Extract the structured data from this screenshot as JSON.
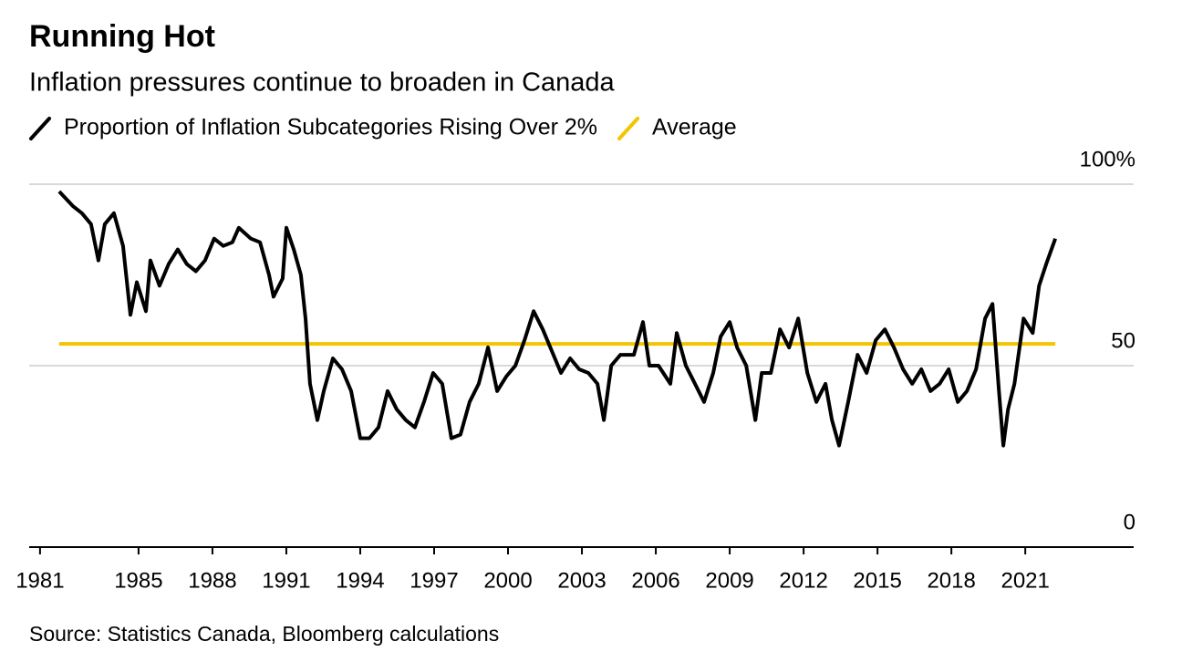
{
  "chart_data": {
    "type": "line",
    "title": "Running Hot",
    "subtitle": "Inflation pressures continue to broaden in Canada",
    "source": "Source: Statistics Canada, Bloomberg calculations",
    "xlim": [
      1980.56,
      2025.4
    ],
    "ylim": [
      0,
      100
    ],
    "yticks": [
      0,
      50,
      {
        "value": 100,
        "label": "100%"
      }
    ],
    "xticks": [
      1981,
      1985,
      1988,
      1991,
      1994,
      1997,
      2000,
      2003,
      2006,
      2009,
      2012,
      2015,
      2018,
      2021
    ],
    "grid": true,
    "series": [
      {
        "name": "Proportion of Inflation Subcategories Rising Over 2%",
        "color": "#000000",
        "x": [
          1981.78,
          1982.33,
          1982.7,
          1983.07,
          1983.37,
          1983.63,
          1984.0,
          1984.37,
          1984.67,
          1984.93,
          1985.3,
          1985.48,
          1985.85,
          1986.22,
          1986.59,
          1986.96,
          1987.33,
          1987.7,
          1988.07,
          1988.44,
          1988.81,
          1989.07,
          1989.56,
          1989.93,
          1990.3,
          1990.48,
          1990.85,
          1991.0,
          1991.3,
          1991.59,
          1991.78,
          1991.96,
          1992.26,
          1992.52,
          1992.89,
          1993.26,
          1993.63,
          1994.0,
          1994.37,
          1994.74,
          1995.11,
          1995.48,
          1995.85,
          1996.22,
          1996.59,
          1996.96,
          1997.33,
          1997.7,
          1998.07,
          1998.44,
          1998.81,
          1999.19,
          1999.56,
          1999.93,
          2000.3,
          2000.67,
          2001.04,
          2001.41,
          2001.78,
          2002.15,
          2002.52,
          2002.89,
          2003.26,
          2003.63,
          2003.89,
          2004.19,
          2004.56,
          2005.11,
          2005.48,
          2005.74,
          2006.11,
          2006.59,
          2006.85,
          2007.22,
          2007.59,
          2007.96,
          2008.33,
          2008.63,
          2009.0,
          2009.3,
          2009.67,
          2010.04,
          2010.3,
          2010.67,
          2011.04,
          2011.41,
          2011.78,
          2012.15,
          2012.52,
          2012.89,
          2013.15,
          2013.44,
          2013.81,
          2014.19,
          2014.56,
          2014.93,
          2015.3,
          2015.67,
          2016.04,
          2016.41,
          2016.78,
          2017.15,
          2017.52,
          2017.89,
          2018.26,
          2018.63,
          2019.0,
          2019.37,
          2019.67,
          2019.93,
          2020.11,
          2020.3,
          2020.56,
          2020.93,
          2021.3,
          2021.56,
          2021.85,
          2022.22
        ],
        "values": [
          98,
          94,
          92,
          89,
          79,
          89,
          92,
          83,
          64,
          73,
          65,
          79,
          72,
          78,
          82,
          78,
          76,
          79,
          85,
          83,
          84,
          88,
          85,
          84,
          75,
          69,
          74,
          88,
          82,
          75,
          63,
          45,
          35,
          43,
          52,
          49,
          43,
          30,
          30,
          33,
          43,
          38,
          35,
          33,
          40,
          48,
          45,
          30,
          31,
          40,
          45,
          55,
          43,
          47,
          50,
          57,
          65,
          60,
          54,
          48,
          52,
          49,
          48,
          45,
          35,
          50,
          53,
          53,
          62,
          50,
          50,
          45,
          59,
          50,
          45,
          40,
          48,
          58,
          62,
          55,
          50,
          35,
          48,
          48,
          60,
          55,
          63,
          48,
          40,
          45,
          35,
          28,
          40,
          53,
          48,
          57,
          60,
          55,
          49,
          45,
          49,
          43,
          45,
          49,
          40,
          43,
          49,
          63,
          67,
          43,
          28,
          38,
          45,
          63,
          59,
          72,
          78,
          85
        ]
      },
      {
        "name": "Average",
        "color": "#f5c400",
        "x": [
          1981.78,
          2022.22
        ],
        "values": [
          56,
          56
        ]
      }
    ]
  }
}
